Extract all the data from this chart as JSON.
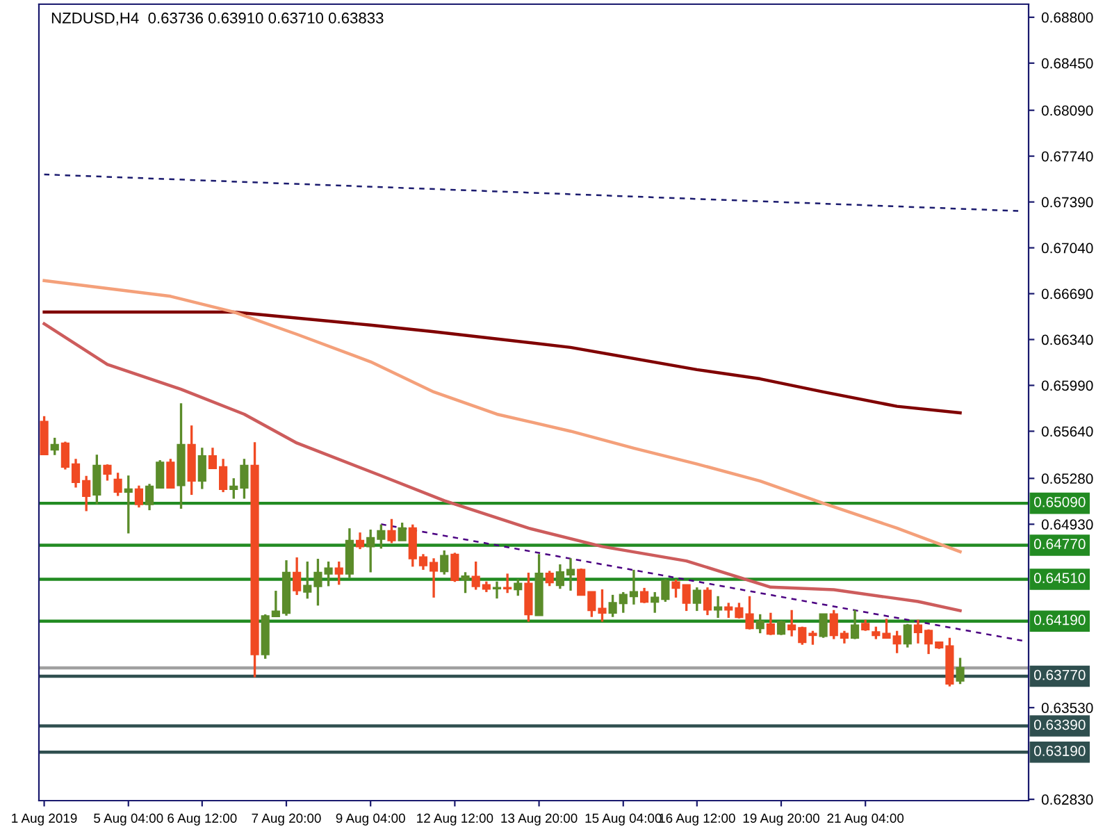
{
  "chart_data": {
    "type": "candlestick",
    "title": "NZDUSD,H4  0.63736 0.63910 0.63710 0.63833",
    "categories": [
      "1 Aug 2019",
      null,
      null,
      null,
      null,
      null,
      null,
      null,
      "5 Aug 04:00",
      null,
      null,
      null,
      null,
      null,
      null,
      "6 Aug 12:00",
      null,
      null,
      null,
      null,
      null,
      null,
      null,
      "7 Aug 20:00",
      null,
      null,
      null,
      null,
      null,
      null,
      null,
      "9 Aug 04:00",
      null,
      null,
      null,
      null,
      null,
      null,
      null,
      "12 Aug 12:00",
      null,
      null,
      null,
      null,
      null,
      null,
      null,
      "13 Aug 20:00",
      null,
      null,
      null,
      null,
      null,
      null,
      null,
      "15 Aug 04:00",
      null,
      null,
      null,
      null,
      null,
      null,
      "16 Aug 12:00",
      null,
      null,
      null,
      null,
      null,
      null,
      null,
      "19 Aug 20:00",
      null,
      null,
      null,
      null,
      null,
      null,
      null,
      "21 Aug 04:00",
      null,
      null,
      null,
      null,
      null,
      null,
      null,
      null,
      null,
      null,
      null,
      null,
      null,
      null,
      null
    ],
    "ohlc": [
      [
        0.65712,
        0.65755,
        0.65458,
        0.65464
      ],
      [
        0.655,
        0.6559,
        0.65458,
        0.65535
      ],
      [
        0.65546,
        0.6556,
        0.65348,
        0.65369
      ],
      [
        0.65387,
        0.65429,
        0.6521,
        0.65252
      ],
      [
        0.6526,
        0.65299,
        0.6503,
        0.65146
      ],
      [
        0.65157,
        0.65461,
        0.65083,
        0.65376
      ],
      [
        0.65376,
        0.65387,
        0.65263,
        0.65316
      ],
      [
        0.6527,
        0.65323,
        0.65146,
        0.65178
      ],
      [
        0.65178,
        0.65302,
        0.6486,
        0.65196
      ],
      [
        0.65196,
        0.65225,
        0.65058,
        0.65083
      ],
      [
        0.65083,
        0.65238,
        0.65037,
        0.65217
      ],
      [
        0.6521,
        0.65419,
        0.6521,
        0.65401
      ],
      [
        0.65401,
        0.65429,
        0.6521,
        0.6521
      ],
      [
        0.65228,
        0.65853,
        0.65048,
        0.65535
      ],
      [
        0.65535,
        0.65684,
        0.65154,
        0.65263
      ],
      [
        0.65263,
        0.65514,
        0.65199,
        0.6545
      ],
      [
        0.6545,
        0.65514,
        0.65358,
        0.65358
      ],
      [
        0.65366,
        0.65429,
        0.65175,
        0.65199
      ],
      [
        0.65199,
        0.65281,
        0.65125,
        0.65217
      ],
      [
        0.6521,
        0.65429,
        0.65125,
        0.65376
      ],
      [
        0.65376,
        0.65556,
        0.63762,
        0.63938
      ],
      [
        0.63938,
        0.64242,
        0.63903,
        0.64228
      ],
      [
        0.64228,
        0.64422,
        0.64228,
        0.64263
      ],
      [
        0.64253,
        0.64655,
        0.64232,
        0.6456
      ],
      [
        0.6456,
        0.64677,
        0.6439,
        0.64425
      ],
      [
        0.64415,
        0.64645,
        0.64362,
        0.6446
      ],
      [
        0.64457,
        0.64666,
        0.64309,
        0.6456
      ],
      [
        0.64553,
        0.64645,
        0.64457,
        0.64592
      ],
      [
        0.64592,
        0.64645,
        0.64468,
        0.64553
      ],
      [
        0.64553,
        0.64899,
        0.64521,
        0.64804
      ],
      [
        0.64804,
        0.64867,
        0.6474,
        0.64761
      ],
      [
        0.64761,
        0.64889,
        0.64563,
        0.64825
      ],
      [
        0.64818,
        0.64928,
        0.64744,
        0.64878
      ],
      [
        0.64878,
        0.6497,
        0.64786,
        0.64808
      ],
      [
        0.64808,
        0.64942,
        0.64808,
        0.64899
      ],
      [
        0.64899,
        0.64928,
        0.64606,
        0.6467
      ],
      [
        0.64677,
        0.64702,
        0.64582,
        0.64617
      ],
      [
        0.64635,
        0.6467,
        0.6437,
        0.64575
      ],
      [
        0.64571,
        0.6473,
        0.64546,
        0.64688
      ],
      [
        0.64698,
        0.64712,
        0.6449,
        0.64504
      ],
      [
        0.64511,
        0.64564,
        0.64405,
        0.64532
      ],
      [
        0.64529,
        0.64645,
        0.6443,
        0.64458
      ],
      [
        0.64465,
        0.64493,
        0.64412,
        0.64437
      ],
      [
        0.6444,
        0.64493,
        0.64363,
        0.64444
      ],
      [
        0.64444,
        0.64553,
        0.64405,
        0.6444
      ],
      [
        0.64433,
        0.64511,
        0.64384,
        0.64476
      ],
      [
        0.64476,
        0.6456,
        0.64186,
        0.64243
      ],
      [
        0.64236,
        0.64702,
        0.64236,
        0.64553
      ],
      [
        0.64553,
        0.64574,
        0.64458,
        0.64486
      ],
      [
        0.64465,
        0.64624,
        0.64437,
        0.64564
      ],
      [
        0.64546,
        0.6467,
        0.64423,
        0.64582
      ],
      [
        0.64582,
        0.64592,
        0.64391,
        0.64391
      ],
      [
        0.64412,
        0.64412,
        0.64222,
        0.64275
      ],
      [
        0.64285,
        0.64433,
        0.64186,
        0.64254
      ],
      [
        0.64254,
        0.64391,
        0.64222,
        0.64328
      ],
      [
        0.64328,
        0.64412,
        0.64254,
        0.64391
      ],
      [
        0.64381,
        0.64582,
        0.64317,
        0.64412
      ],
      [
        0.64412,
        0.64444,
        0.64328,
        0.64338
      ],
      [
        0.64338,
        0.64412,
        0.64254,
        0.6437
      ],
      [
        0.64359,
        0.64511,
        0.64338,
        0.64497
      ],
      [
        0.64486,
        0.64508,
        0.6437,
        0.64444
      ],
      [
        0.64465,
        0.64465,
        0.64268,
        0.6433
      ],
      [
        0.6433,
        0.64448,
        0.64268,
        0.64423
      ],
      [
        0.64423,
        0.64448,
        0.64236,
        0.64278
      ],
      [
        0.64278,
        0.64381,
        0.64215,
        0.64296
      ],
      [
        0.64296,
        0.6433,
        0.64215,
        0.64278
      ],
      [
        0.64289,
        0.6433,
        0.64211,
        0.64222
      ],
      [
        0.64243,
        0.64381,
        0.64127,
        0.64137
      ],
      [
        0.64137,
        0.64243,
        0.64098,
        0.64187
      ],
      [
        0.64165,
        0.64254,
        0.64084,
        0.64094
      ],
      [
        0.64094,
        0.64194,
        0.64084,
        0.64183
      ],
      [
        0.64158,
        0.64275,
        0.64074,
        0.64127
      ],
      [
        0.64137,
        0.64148,
        0.6401,
        0.64031
      ],
      [
        0.64094,
        0.64116,
        0.6401,
        0.64084
      ],
      [
        0.64077,
        0.64243,
        0.64063,
        0.64243
      ],
      [
        0.64243,
        0.64275,
        0.64053,
        0.64084
      ],
      [
        0.64094,
        0.64116,
        0.6402,
        0.64063
      ],
      [
        0.64063,
        0.64275,
        0.64053,
        0.64158
      ],
      [
        0.64169,
        0.64201,
        0.64116,
        0.64127
      ],
      [
        0.64106,
        0.64148,
        0.64053,
        0.64084
      ],
      [
        0.64094,
        0.64208,
        0.64063,
        0.64063
      ],
      [
        0.64074,
        0.64116,
        0.63946,
        0.6402
      ],
      [
        0.6402,
        0.64169,
        0.63989,
        0.64158
      ],
      [
        0.64158,
        0.64201,
        0.6402,
        0.64106
      ],
      [
        0.64116,
        0.64127,
        0.63939,
        0.6402
      ],
      [
        0.64027,
        0.64031,
        0.63978,
        0.63989
      ],
      [
        0.63999,
        0.64063,
        0.63692,
        0.63713
      ],
      [
        0.63736,
        0.6391,
        0.6371,
        0.63833
      ],
      null,
      null,
      null,
      null,
      null,
      null
    ],
    "series": [
      {
        "type": "line",
        "color": "#800000",
        "values": [
          0.6655,
          null,
          null,
          null,
          null,
          null,
          null,
          null,
          null,
          null,
          null,
          null,
          null,
          null,
          null,
          null,
          null,
          null,
          0.6655,
          null,
          null,
          null,
          null,
          null,
          null,
          null,
          null,
          null,
          null,
          null,
          null,
          0.6645,
          null,
          null,
          null,
          null,
          null,
          0.664,
          null,
          null,
          null,
          null,
          null,
          null,
          null,
          null,
          null,
          null,
          null,
          null,
          0.6628,
          null,
          null,
          null,
          null,
          null,
          null,
          null,
          null,
          null,
          null,
          null,
          0.6611,
          null,
          null,
          null,
          null,
          null,
          0.6604,
          null,
          null,
          null,
          null,
          null,
          0.6594,
          null,
          null,
          null,
          null,
          null,
          null,
          0.6583,
          null,
          null,
          null,
          null,
          null,
          0.6578,
          null,
          null,
          null,
          null,
          null,
          null
        ]
      },
      {
        "type": "line",
        "color": "#f4a07a",
        "values": [
          0.6679,
          null,
          null,
          null,
          null,
          null,
          null,
          null,
          null,
          null,
          null,
          null,
          0.6667,
          null,
          null,
          null,
          null,
          null,
          0.6655,
          null,
          null,
          null,
          null,
          null,
          0.6638,
          null,
          null,
          null,
          null,
          null,
          null,
          0.6617,
          null,
          null,
          null,
          null,
          null,
          0.6594,
          null,
          null,
          null,
          null,
          null,
          0.6577,
          null,
          null,
          null,
          null,
          null,
          null,
          0.6564,
          null,
          null,
          null,
          null,
          null,
          0.6551,
          null,
          null,
          null,
          null,
          null,
          0.6539,
          null,
          null,
          null,
          null,
          null,
          0.6526,
          null,
          null,
          null,
          null,
          null,
          0.6509,
          null,
          null,
          null,
          null,
          null,
          null,
          0.649,
          null,
          null,
          null,
          null,
          null,
          0.6472,
          null,
          null,
          null,
          null,
          null,
          null
        ]
      },
      {
        "type": "line",
        "color": "#cd5c5c",
        "values": [
          0.6646,
          null,
          null,
          null,
          null,
          null,
          0.6615,
          null,
          null,
          null,
          null,
          null,
          null,
          0.6596,
          null,
          null,
          null,
          null,
          null,
          0.6577,
          null,
          null,
          null,
          null,
          0.6555,
          null,
          null,
          null,
          null,
          null,
          null,
          null,
          0.653,
          null,
          null,
          null,
          null,
          null,
          0.6511,
          null,
          null,
          null,
          null,
          null,
          null,
          null,
          0.649,
          null,
          null,
          null,
          null,
          null,
          null,
          0.6476,
          null,
          null,
          null,
          null,
          null,
          null,
          null,
          0.6465,
          null,
          null,
          null,
          null,
          null,
          null,
          null,
          0.6445,
          null,
          null,
          null,
          null,
          null,
          0.6443,
          null,
          null,
          null,
          null,
          null,
          null,
          null,
          0.6434,
          null,
          null,
          null,
          0.6427,
          null,
          null,
          null,
          null,
          null,
          null
        ]
      },
      {
        "type": "line",
        "color": "#1a1a6e",
        "line_style": "dashed",
        "values": [
          0.676,
          null,
          null,
          null,
          null,
          null,
          null,
          null,
          null,
          null,
          null,
          null,
          null,
          null,
          null,
          null,
          null,
          null,
          null,
          null,
          null,
          null,
          null,
          null,
          null,
          null,
          null,
          null,
          null,
          null,
          null,
          null,
          null,
          null,
          null,
          null,
          null,
          null,
          null,
          null,
          null,
          null,
          null,
          null,
          null,
          null,
          null,
          null,
          null,
          null,
          null,
          null,
          null,
          null,
          null,
          null,
          null,
          null,
          null,
          null,
          null,
          null,
          null,
          null,
          null,
          null,
          null,
          null,
          null,
          null,
          null,
          null,
          null,
          null,
          null,
          null,
          null,
          null,
          null,
          null,
          null,
          null,
          null,
          null,
          null,
          null,
          null,
          null,
          null,
          null,
          null,
          null,
          null,
          0.6732
        ]
      },
      {
        "type": "line",
        "color": "#4b0082",
        "line_style": "dashed",
        "values": [
          null,
          null,
          null,
          null,
          null,
          null,
          null,
          null,
          null,
          null,
          null,
          null,
          null,
          null,
          null,
          null,
          null,
          null,
          null,
          null,
          null,
          null,
          null,
          null,
          null,
          null,
          null,
          null,
          null,
          null,
          null,
          null,
          0.6493,
          null,
          null,
          null,
          null,
          null,
          null,
          null,
          null,
          null,
          null,
          null,
          null,
          null,
          null,
          null,
          null,
          null,
          null,
          null,
          null,
          null,
          null,
          null,
          null,
          null,
          null,
          null,
          null,
          null,
          null,
          null,
          null,
          null,
          null,
          null,
          null,
          null,
          null,
          null,
          null,
          null,
          null,
          null,
          null,
          null,
          null,
          null,
          null,
          null,
          null,
          null,
          null,
          null,
          null,
          null,
          null,
          null,
          null,
          null,
          null,
          0.6404
        ]
      }
    ],
    "ylim": [
      0.6282,
      0.689
    ],
    "yticks": [
      {
        "value": 0.688,
        "label": "0.68800"
      },
      {
        "value": 0.6845,
        "label": "0.68450"
      },
      {
        "value": 0.6809,
        "label": "0.68090"
      },
      {
        "value": 0.6774,
        "label": "0.67740"
      },
      {
        "value": 0.6739,
        "label": "0.67390"
      },
      {
        "value": 0.6704,
        "label": "0.67040"
      },
      {
        "value": 0.6669,
        "label": "0.66690"
      },
      {
        "value": 0.6634,
        "label": "0.66340"
      },
      {
        "value": 0.6599,
        "label": "0.65990"
      },
      {
        "value": 0.6564,
        "label": "0.65640"
      },
      {
        "value": 0.6528,
        "label": "0.65280"
      },
      {
        "value": 0.6493,
        "label": "0.64930"
      },
      {
        "value": 0.6353,
        "label": "0.63530"
      },
      {
        "value": 0.6283,
        "label": "0.62830"
      }
    ],
    "ref_lines": [
      {
        "axis": "y",
        "value": 0.6509,
        "label": "0.65090",
        "color": "#228b22"
      },
      {
        "axis": "y",
        "value": 0.6477,
        "label": "0.64770",
        "color": "#228b22"
      },
      {
        "axis": "y",
        "value": 0.6451,
        "label": "0.64510",
        "color": "#228b22"
      },
      {
        "axis": "y",
        "value": 0.6419,
        "label": "0.64190",
        "color": "#228b22"
      },
      {
        "axis": "y",
        "value": 0.63833,
        "label": null,
        "color": "#a0a0a0"
      },
      {
        "axis": "y",
        "value": 0.6377,
        "label": "0.63770",
        "color": "#2f4f4f"
      },
      {
        "axis": "y",
        "value": 0.6339,
        "label": "0.63390",
        "color": "#2f4f4f"
      },
      {
        "axis": "y",
        "value": 0.6319,
        "label": "0.63190",
        "color": "#2f4f4f"
      }
    ],
    "grid": false,
    "legend": false
  }
}
